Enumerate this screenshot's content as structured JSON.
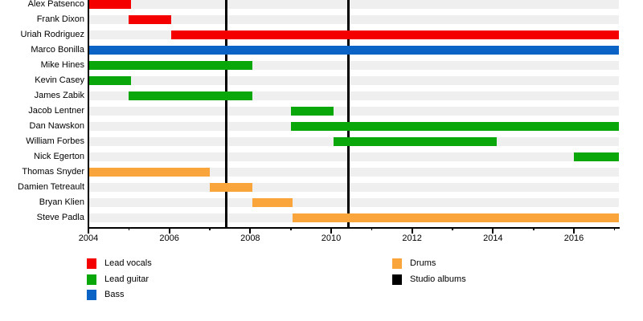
{
  "colors": {
    "vocals": "#F40000",
    "guitar": "#0AA70A",
    "bass": "#0B63C6",
    "drums": "#FAA43C",
    "albums": "#000000",
    "row_stripe": "#EFEFEF",
    "axis": "#000000"
  },
  "chart_data": {
    "type": "bar",
    "variant": "horizontal band-membership timeline (gantt)",
    "title": "",
    "xlabel": "",
    "ylabel": "",
    "x_axis": {
      "start": 2004,
      "end": 2017.11,
      "major_ticks": [
        {
          "value": 2004,
          "label": "2004"
        },
        {
          "value": 2006,
          "label": "2006"
        },
        {
          "value": 2008,
          "label": "2008"
        },
        {
          "value": 2010,
          "label": "2010"
        },
        {
          "value": 2012,
          "label": "2012"
        },
        {
          "value": 2014,
          "label": "2014"
        },
        {
          "value": 2016,
          "label": "2016"
        }
      ],
      "minor_ticks": [
        2005,
        2007,
        2009,
        2011,
        2013,
        2015,
        2017
      ]
    },
    "members": [
      {
        "name": "Alex Patsenco",
        "role": "Lead vocals",
        "color": "vocals",
        "start": 2004,
        "end": 2005.05
      },
      {
        "name": "Frank Dixon",
        "role": "Lead vocals",
        "color": "vocals",
        "start": 2005,
        "end": 2006.05
      },
      {
        "name": "Uriah Rodriguez",
        "role": "Lead vocals",
        "color": "vocals",
        "start": 2006.05,
        "end": 2017.11
      },
      {
        "name": "Marco Bonilla",
        "role": "Bass",
        "color": "bass",
        "start": 2004,
        "end": 2017.11
      },
      {
        "name": "Mike Hines",
        "role": "Lead guitar",
        "color": "guitar",
        "start": 2004,
        "end": 2008.05
      },
      {
        "name": "Kevin Casey",
        "role": "Lead guitar",
        "color": "guitar",
        "start": 2004,
        "end": 2005.05
      },
      {
        "name": "James Zabik",
        "role": "Lead guitar",
        "color": "guitar",
        "start": 2005,
        "end": 2008.05
      },
      {
        "name": "Jacob Lentner",
        "role": "Lead guitar",
        "color": "guitar",
        "start": 2009,
        "end": 2010.05
      },
      {
        "name": "Dan Nawskon",
        "role": "Lead guitar",
        "color": "guitar",
        "start": 2009,
        "end": 2017.11
      },
      {
        "name": "William Forbes",
        "role": "Lead guitar",
        "color": "guitar",
        "start": 2010.05,
        "end": 2014.1
      },
      {
        "name": "Nick Egerton",
        "role": "Lead guitar",
        "color": "guitar",
        "start": 2016,
        "end": 2017.11
      },
      {
        "name": "Thomas Snyder",
        "role": "Drums",
        "color": "drums",
        "start": 2004,
        "end": 2007.0
      },
      {
        "name": "Damien Tetreault",
        "role": "Drums",
        "color": "drums",
        "start": 2007.0,
        "end": 2008.05
      },
      {
        "name": "Bryan Klien",
        "role": "Drums",
        "color": "drums",
        "start": 2008.05,
        "end": 2009.05
      },
      {
        "name": "Steve Padla",
        "role": "Drums",
        "color": "drums",
        "start": 2009.05,
        "end": 2017.11
      }
    ],
    "events": [
      {
        "label": "Studio album",
        "year": 2007.4
      },
      {
        "label": "Studio album",
        "year": 2010.42
      }
    ],
    "legend_position": "bottom"
  },
  "legend": {
    "columns": [
      [
        {
          "label": "Lead vocals",
          "color": "vocals"
        },
        {
          "label": "Lead guitar",
          "color": "guitar"
        },
        {
          "label": "Bass",
          "color": "bass"
        }
      ],
      [
        {
          "label": "Drums",
          "color": "drums"
        },
        {
          "label": "Studio albums",
          "color": "albums"
        }
      ]
    ]
  }
}
